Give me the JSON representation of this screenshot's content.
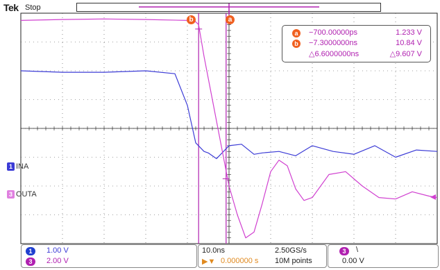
{
  "header": {
    "brand": "Tek",
    "acq_state": "Stop"
  },
  "colors": {
    "ch1": "#3b3bd6",
    "ch3": "#d040d0",
    "cursor": "#b020b0",
    "badge": "#f06020",
    "grid": "#222222"
  },
  "cursor_readout": {
    "a": {
      "label": "a",
      "time": "−700.00000ps",
      "value": "1.233 V"
    },
    "b": {
      "label": "b",
      "time": "−7.3000000ns",
      "value": "10.84 V"
    },
    "delta": {
      "time": "△6.6000000ns",
      "value": "△9.607 V"
    }
  },
  "markers": {
    "a": "a",
    "b": "b"
  },
  "channels": [
    {
      "num": "1",
      "name": "INA",
      "scale": "1.00 V",
      "color": "#3b3bd6"
    },
    {
      "num": "3",
      "name": "OUTA",
      "scale": "2.00 V",
      "color": "#d040d0"
    }
  ],
  "timebase": {
    "scale": "10.0ns",
    "sample_rate": "2.50GS/s",
    "record": "10M points",
    "delay": "0.000000 s"
  },
  "trigger": {
    "source": "3",
    "slope_icon": "\\",
    "level": "0.00 V"
  },
  "chart_data": {
    "type": "line",
    "x_unit": "ns",
    "xlim": [
      -50,
      50
    ],
    "ylim_div": [
      -4,
      4
    ],
    "grid": true,
    "series": [
      {
        "name": "INA",
        "ch": "1",
        "x": [
          -50,
          -40,
          -30,
          -20,
          -13,
          -10,
          -8,
          -6,
          -5,
          -3,
          0,
          3,
          6,
          8,
          12,
          16,
          20,
          25,
          30,
          35,
          40,
          45,
          50
        ],
        "y": [
          2.0,
          1.95,
          1.95,
          2.0,
          1.9,
          0.8,
          -0.5,
          -0.8,
          -0.85,
          -1.05,
          -0.6,
          -0.55,
          -0.9,
          -0.85,
          -0.8,
          -0.95,
          -0.6,
          -0.8,
          -0.9,
          -0.6,
          -1.0,
          -0.75,
          -0.8
        ]
      },
      {
        "name": "OUTA",
        "ch": "3",
        "x": [
          -50,
          -40,
          -30,
          -20,
          -10,
          -8,
          -7.3,
          -6,
          -4,
          -2,
          0,
          2,
          4,
          6,
          8,
          10,
          12,
          14,
          16,
          18,
          20,
          24,
          28,
          32,
          36,
          40,
          44,
          48,
          50
        ],
        "y": [
          3.75,
          3.78,
          3.8,
          3.78,
          3.75,
          3.7,
          3.6,
          2.5,
          1.0,
          -0.5,
          -2.0,
          -3.0,
          -3.8,
          -3.6,
          -2.6,
          -1.5,
          -1.1,
          -1.3,
          -2.1,
          -2.5,
          -2.4,
          -1.6,
          -1.5,
          -2.0,
          -2.4,
          -2.45,
          -2.2,
          -2.35,
          -2.4
        ]
      }
    ],
    "cursors": {
      "a_ns": -0.7,
      "b_ns": -7.3,
      "a_div": -1.75,
      "b_div": 3.45
    }
  }
}
